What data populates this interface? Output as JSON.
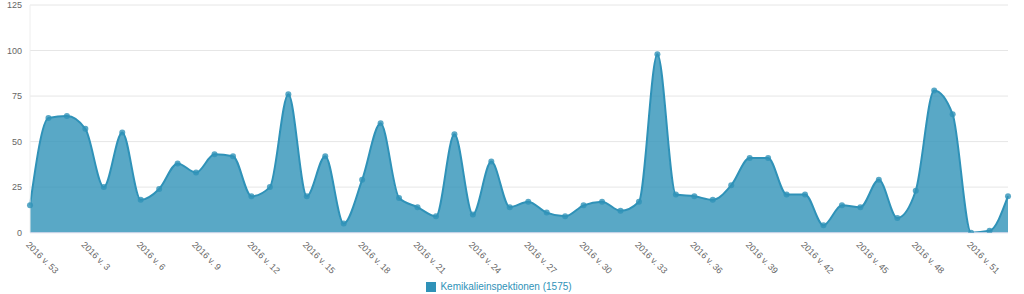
{
  "chart_data": {
    "type": "area",
    "categories": [
      "2016 v. 53",
      null,
      null,
      "2016 v. 3",
      null,
      null,
      "2016 v. 6",
      null,
      null,
      "2016 v. 9",
      null,
      null,
      "2016 v. 12",
      null,
      null,
      "2016 v. 15",
      null,
      null,
      "2016 v. 18",
      null,
      null,
      "2016 v. 21",
      null,
      null,
      "2016 v. 24",
      null,
      null,
      "2016 v. 27",
      null,
      null,
      "2016 v. 30",
      null,
      null,
      "2016 v. 33",
      null,
      null,
      "2016 v. 36",
      null,
      null,
      "2016 v. 39",
      null,
      null,
      "2016 v. 42",
      null,
      null,
      "2016 v. 45",
      null,
      null,
      "2016 v. 48",
      null,
      null,
      "2016 v. 51",
      null,
      null
    ],
    "series": [
      {
        "name": "Kemikalieinspektionen (1575)",
        "color": "#2f92b8",
        "marker": "circle",
        "values": [
          15,
          63,
          64,
          57,
          25,
          55,
          18,
          24,
          38,
          33,
          43,
          42,
          20,
          25,
          76,
          20,
          42,
          5,
          29,
          60,
          19,
          14,
          9,
          54,
          10,
          39,
          14,
          17,
          11,
          9,
          15,
          17,
          12,
          17,
          98,
          21,
          20,
          18,
          26,
          41,
          41,
          21,
          21,
          4,
          15,
          14,
          29,
          8,
          23,
          78,
          65,
          0,
          1,
          20
        ]
      }
    ],
    "ylim": [
      0,
      125
    ],
    "yticks": [
      0,
      25,
      50,
      75,
      100,
      125
    ],
    "grid": true,
    "legend": "bottom"
  }
}
